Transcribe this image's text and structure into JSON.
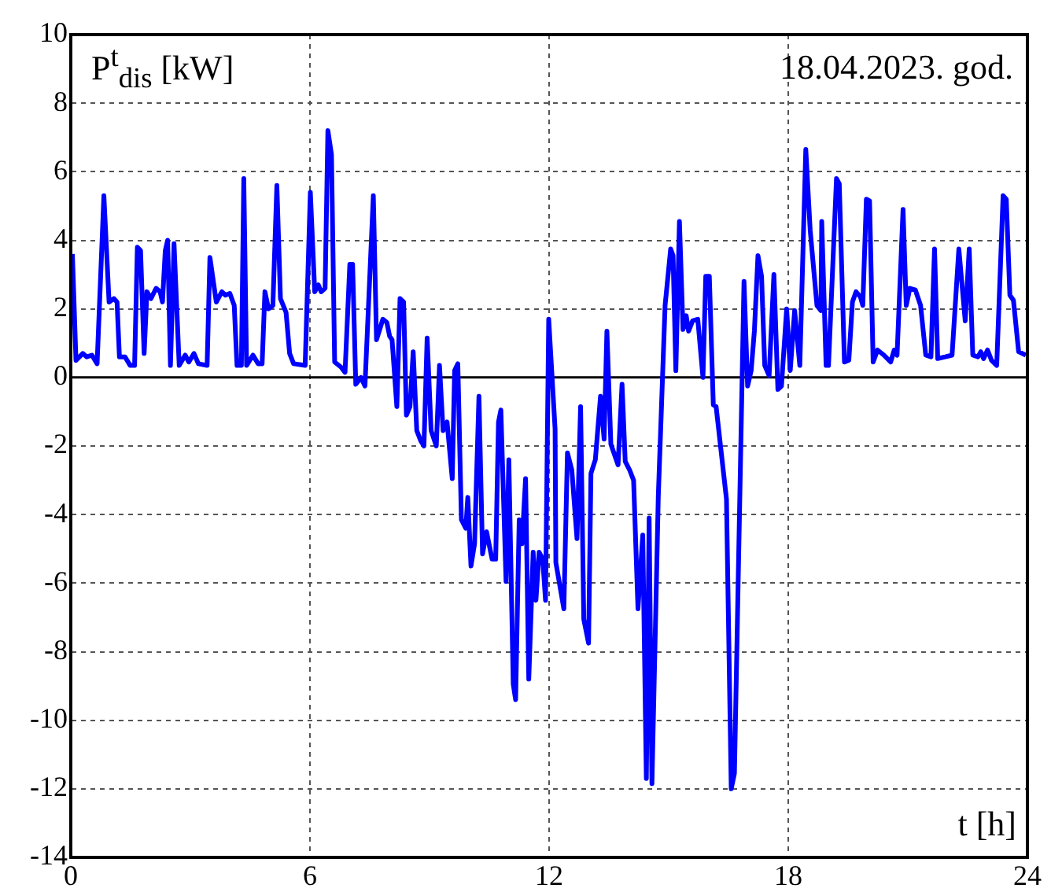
{
  "chart_data": {
    "type": "line",
    "ylabel": "P$^{t}$$_{dis}$ [kW]",
    "xlabel": "t [h]",
    "annotations": [
      "18.04.2023. god."
    ],
    "xlim": [
      0,
      24
    ],
    "xticks": [
      0,
      6,
      12,
      18,
      24
    ],
    "ylim": [
      -14,
      10
    ],
    "yticks": [
      -14,
      -12,
      -10,
      -8,
      -6,
      -4,
      -2,
      0,
      2,
      4,
      6,
      8,
      10
    ],
    "grid": true,
    "legend": false,
    "marker": "none",
    "line_style": "solid",
    "ref_lines": [
      {
        "axis": "y",
        "value": 0,
        "color": "#000000"
      }
    ],
    "series": [
      {
        "color": "#0000ff",
        "x": [
          0.04,
          0.13,
          0.3,
          0.4,
          0.53,
          0.66,
          0.83,
          0.96,
          1.08,
          1.16,
          1.22,
          1.36,
          1.49,
          1.6,
          1.67,
          1.75,
          1.84,
          1.91,
          2.01,
          2.14,
          2.24,
          2.3,
          2.37,
          2.43,
          2.5,
          2.59,
          2.72,
          2.87,
          2.96,
          3.09,
          3.2,
          3.42,
          3.49,
          3.65,
          3.79,
          3.88,
          3.99,
          4.1,
          4.17,
          4.28,
          4.34,
          4.41,
          4.57,
          4.7,
          4.8,
          4.87,
          4.96,
          5.07,
          5.17,
          5.26,
          5.4,
          5.49,
          5.59,
          5.88,
          6.01,
          6.12,
          6.21,
          6.28,
          6.38,
          6.45,
          6.54,
          6.62,
          6.78,
          6.88,
          7.0,
          7.07,
          7.15,
          7.28,
          7.38,
          7.59,
          7.67,
          7.83,
          7.93,
          8.0,
          8.06,
          8.18,
          8.26,
          8.35,
          8.42,
          8.51,
          8.59,
          8.68,
          8.78,
          8.86,
          8.94,
          9.04,
          9.17,
          9.25,
          9.34,
          9.44,
          9.57,
          9.63,
          9.71,
          9.8,
          9.91,
          9.96,
          10.04,
          10.13,
          10.24,
          10.33,
          10.43,
          10.57,
          10.66,
          10.73,
          10.79,
          10.92,
          10.99,
          11.1,
          11.16,
          11.25,
          11.32,
          11.41,
          11.49,
          11.6,
          11.67,
          11.75,
          11.84,
          11.91,
          11.99,
          12.15,
          12.17,
          12.37,
          12.46,
          12.57,
          12.7,
          12.79,
          12.87,
          12.99,
          13.05,
          13.16,
          13.29,
          13.38,
          13.45,
          13.55,
          13.73,
          13.83,
          13.91,
          14.02,
          14.12,
          14.23,
          14.35,
          14.44,
          14.51,
          14.58,
          14.74,
          14.91,
          15.05,
          15.11,
          15.18,
          15.27,
          15.36,
          15.44,
          15.5,
          15.6,
          15.73,
          15.86,
          15.93,
          16.02,
          16.12,
          16.19,
          16.45,
          16.57,
          16.65,
          16.89,
          16.98,
          17.07,
          17.15,
          17.24,
          17.33,
          17.41,
          17.52,
          17.64,
          17.74,
          17.83,
          17.96,
          18.05,
          18.16,
          18.29,
          18.44,
          18.55,
          18.72,
          18.82,
          18.84,
          18.95,
          19.01,
          19.21,
          19.28,
          19.41,
          19.52,
          19.61,
          19.7,
          19.81,
          19.87,
          19.96,
          20.04,
          20.13,
          20.24,
          20.4,
          20.57,
          20.66,
          20.73,
          20.88,
          20.96,
          21.05,
          21.19,
          21.32,
          21.45,
          21.58,
          21.67,
          21.75,
          21.94,
          22.11,
          22.28,
          22.44,
          22.54,
          22.63,
          22.76,
          22.83,
          22.9,
          23.0,
          23.1,
          23.23,
          23.39,
          23.47,
          23.56,
          23.65,
          23.78,
          23.96
        ],
        "values": [
          3.6,
          0.5,
          0.7,
          0.6,
          0.65,
          0.4,
          5.3,
          2.2,
          2.3,
          2.2,
          0.6,
          0.6,
          0.35,
          0.35,
          3.8,
          3.7,
          0.7,
          2.5,
          2.3,
          2.6,
          2.5,
          2.2,
          3.7,
          4.0,
          0.35,
          3.9,
          0.35,
          0.65,
          0.45,
          0.7,
          0.4,
          0.35,
          3.5,
          2.2,
          2.5,
          2.4,
          2.45,
          2.1,
          0.35,
          0.35,
          5.8,
          0.35,
          0.65,
          0.4,
          0.4,
          2.5,
          2.0,
          2.1,
          5.6,
          2.3,
          1.9,
          0.7,
          0.4,
          0.35,
          5.4,
          2.5,
          2.7,
          2.5,
          2.6,
          7.2,
          6.5,
          0.45,
          0.3,
          0.15,
          3.3,
          3.3,
          -0.2,
          0,
          -0.25,
          5.3,
          1.1,
          1.7,
          1.6,
          1.2,
          1.1,
          -0.85,
          2.3,
          2.2,
          -1.1,
          -0.85,
          0.75,
          -1.55,
          -1.85,
          -2.0,
          1.15,
          -1.55,
          -2.0,
          0.35,
          -1.55,
          -1.3,
          -2.95,
          0.2,
          0.4,
          -4.15,
          -4.4,
          -3.5,
          -5.5,
          -4.85,
          -0.55,
          -5.15,
          -4.5,
          -5.3,
          -5.3,
          -1.3,
          -0.95,
          -5.95,
          -2.4,
          -8.95,
          -9.4,
          -4.15,
          -4.85,
          -2.95,
          -8.8,
          -5.1,
          -6.5,
          -5.1,
          -5.3,
          -6.5,
          1.7,
          -1.5,
          -5.4,
          -6.75,
          -2.2,
          -2.7,
          -4.7,
          -0.85,
          -7.05,
          -7.75,
          -2.8,
          -2.4,
          -0.55,
          -1.8,
          1.35,
          -1.95,
          -2.55,
          -0.2,
          -2.45,
          -2.7,
          -3.0,
          -6.75,
          -4.6,
          -11.7,
          -4.1,
          -11.85,
          -3.45,
          2.1,
          3.75,
          3.55,
          0.2,
          4.55,
          1.4,
          1.8,
          1.35,
          1.65,
          1.7,
          0,
          2.95,
          2.95,
          -0.8,
          -0.85,
          -3.55,
          -12.0,
          -11.55,
          2.8,
          -0.25,
          0.2,
          1.35,
          3.55,
          2.95,
          0.35,
          0.05,
          3.0,
          -0.35,
          -0.25,
          2.0,
          0.2,
          1.95,
          0.35,
          6.65,
          4.3,
          2.1,
          1.95,
          4.55,
          0.35,
          0.35,
          5.8,
          5.65,
          0.45,
          0.5,
          2.2,
          2.5,
          2.35,
          2.1,
          5.2,
          5.15,
          0.45,
          0.8,
          0.65,
          0.45,
          0.8,
          0.65,
          4.9,
          2.1,
          2.6,
          2.55,
          2.1,
          0.65,
          0.6,
          3.75,
          0.55,
          0.6,
          0.65,
          3.75,
          1.65,
          3.75,
          0.65,
          0.6,
          0.75,
          0.55,
          0.8,
          0.5,
          0.35,
          5.3,
          5.2,
          2.4,
          2.25,
          0.75,
          0.65
        ]
      }
    ]
  }
}
